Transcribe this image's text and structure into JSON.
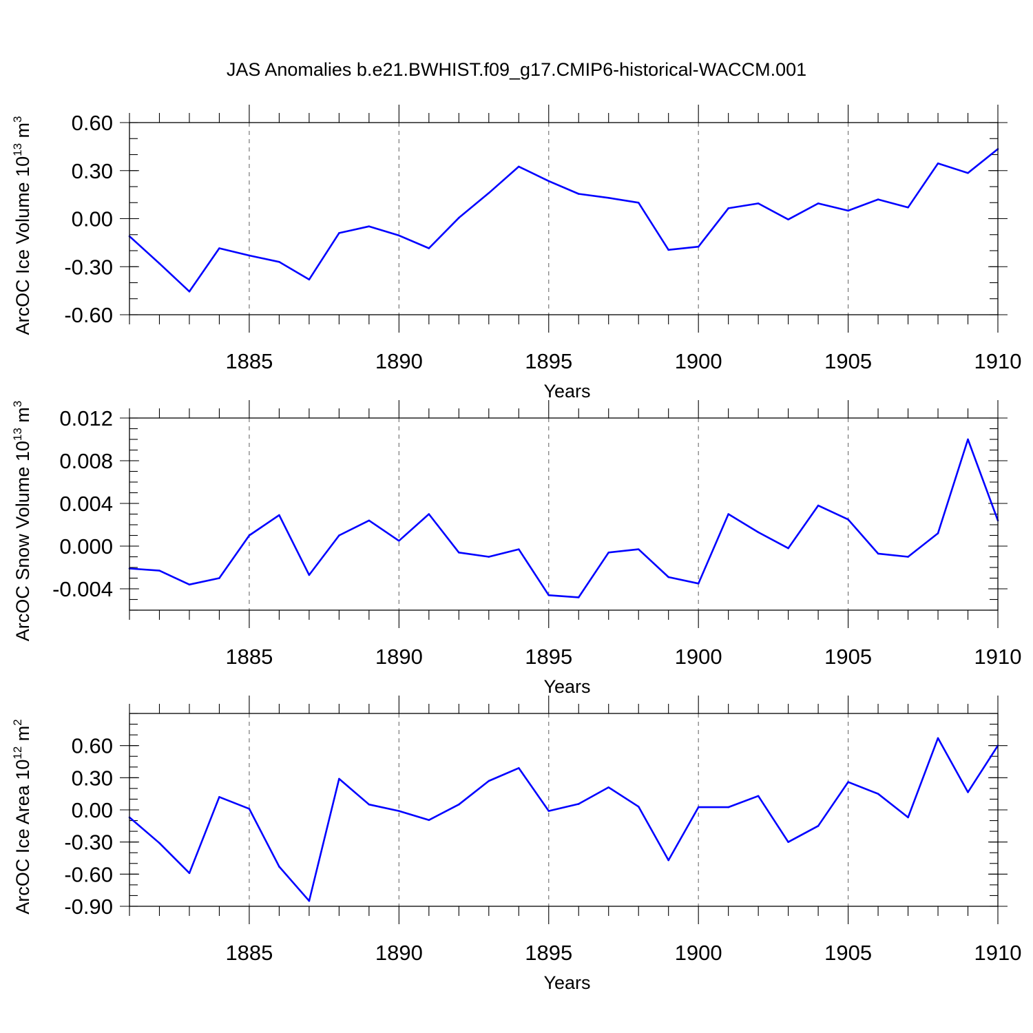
{
  "title": "JAS Anomalies b.e21.BWHIST.f09_g17.CMIP6-historical-WACCM.001",
  "colors": {
    "line": "#0000ff",
    "axis": "#000000",
    "grid": "#777777"
  },
  "chart_data": [
    {
      "type": "line",
      "ylabel": "ArcOC Ice Volume 10",
      "ylabel_sup": "13",
      "ylabel_unit": " m",
      "ylabel_unit_sup": "3",
      "xlabel": "Years",
      "xlim": [
        1881,
        1910
      ],
      "ylim": [
        -0.6,
        0.6
      ],
      "ymajor": [
        -0.6,
        -0.3,
        0.0,
        0.3,
        0.6
      ],
      "ytick_labels": [
        "-0.60",
        "-0.30",
        "0.00",
        "0.30",
        "0.60"
      ],
      "yminor_step": 0.1,
      "xtick_values": [
        1885,
        1890,
        1895,
        1900,
        1905,
        1910
      ],
      "xtick_labels": [
        "1885",
        "1890",
        "1895",
        "1900",
        "1905",
        "1910"
      ],
      "x": [
        1881,
        1882,
        1883,
        1884,
        1885,
        1886,
        1887,
        1888,
        1889,
        1890,
        1891,
        1892,
        1893,
        1894,
        1895,
        1896,
        1897,
        1898,
        1899,
        1900,
        1901,
        1902,
        1903,
        1904,
        1905,
        1906,
        1907,
        1908,
        1909,
        1910
      ],
      "values": [
        -0.11,
        -0.28,
        -0.455,
        -0.185,
        -0.23,
        -0.27,
        -0.38,
        -0.09,
        -0.048,
        -0.105,
        -0.185,
        0.005,
        0.16,
        0.325,
        0.235,
        0.155,
        0.13,
        0.1,
        -0.195,
        -0.175,
        0.065,
        0.095,
        -0.005,
        0.095,
        0.05,
        0.12,
        0.07,
        0.345,
        0.285,
        0.435
      ]
    },
    {
      "type": "line",
      "ylabel": "ArcOC Snow Volume 10",
      "ylabel_sup": "13",
      "ylabel_unit": " m",
      "ylabel_unit_sup": "3",
      "xlabel": "Years",
      "xlim": [
        1881,
        1910
      ],
      "ylim": [
        -0.006,
        0.012
      ],
      "ymajor": [
        -0.004,
        0.0,
        0.004,
        0.008,
        0.012
      ],
      "ytick_labels": [
        "-0.004",
        "0.000",
        "0.004",
        "0.008",
        "0.012"
      ],
      "yminor_step": 0.001,
      "xtick_values": [
        1885,
        1890,
        1895,
        1900,
        1905,
        1910
      ],
      "xtick_labels": [
        "1885",
        "1890",
        "1895",
        "1900",
        "1905",
        "1910"
      ],
      "x": [
        1881,
        1882,
        1883,
        1884,
        1885,
        1886,
        1887,
        1888,
        1889,
        1890,
        1891,
        1892,
        1893,
        1894,
        1895,
        1896,
        1897,
        1898,
        1899,
        1900,
        1901,
        1902,
        1903,
        1904,
        1905,
        1906,
        1907,
        1908,
        1909,
        1910
      ],
      "values": [
        -0.0021,
        -0.0023,
        -0.0036,
        -0.003,
        0.001,
        0.0029,
        -0.0027,
        0.001,
        0.0024,
        0.0005,
        0.003,
        -0.0006,
        -0.001,
        -0.0003,
        -0.0046,
        -0.0048,
        -0.0006,
        -0.0003,
        -0.0029,
        -0.0035,
        0.003,
        0.0013,
        -0.0002,
        0.0038,
        0.0025,
        -0.0007,
        -0.001,
        0.0012,
        0.01,
        0.0024
      ]
    },
    {
      "type": "line",
      "ylabel": "ArcOC Ice Area 10",
      "ylabel_sup": "12",
      "ylabel_unit": " m",
      "ylabel_unit_sup": "2",
      "xlabel": "Years",
      "xlim": [
        1881,
        1910
      ],
      "ylim": [
        -0.9,
        0.9
      ],
      "ymajor": [
        -0.9,
        -0.6,
        -0.3,
        0.0,
        0.3,
        0.6
      ],
      "ytick_labels": [
        "-0.90",
        "-0.60",
        "-0.30",
        "0.00",
        "0.30",
        "0.60"
      ],
      "yminor_step": 0.1,
      "xtick_values": [
        1885,
        1890,
        1895,
        1900,
        1905,
        1910
      ],
      "xtick_labels": [
        "1885",
        "1890",
        "1895",
        "1900",
        "1905",
        "1910"
      ],
      "x": [
        1881,
        1882,
        1883,
        1884,
        1885,
        1886,
        1887,
        1888,
        1889,
        1890,
        1891,
        1892,
        1893,
        1894,
        1895,
        1896,
        1897,
        1898,
        1899,
        1900,
        1901,
        1902,
        1903,
        1904,
        1905,
        1906,
        1907,
        1908,
        1909,
        1910
      ],
      "values": [
        -0.07,
        -0.31,
        -0.59,
        0.12,
        0.01,
        -0.53,
        -0.85,
        0.29,
        0.05,
        -0.01,
        -0.095,
        0.05,
        0.27,
        0.39,
        -0.01,
        0.055,
        0.21,
        0.03,
        -0.47,
        0.025,
        0.025,
        0.13,
        -0.3,
        -0.15,
        0.26,
        0.15,
        -0.07,
        0.67,
        0.165,
        0.6
      ]
    }
  ]
}
